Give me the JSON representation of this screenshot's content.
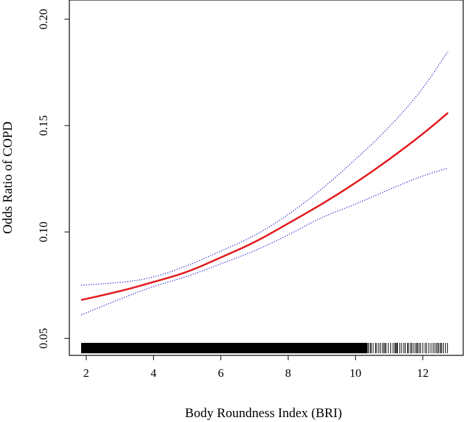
{
  "chart_data": {
    "type": "line",
    "xlabel": "Body Roundness Index (BRI)",
    "ylabel": "Odds Ratio of COPD",
    "xlim": [
      1.5,
      13.2
    ],
    "ylim": [
      0.042,
      0.209
    ],
    "x_ticks": [
      2,
      4,
      6,
      8,
      10,
      12
    ],
    "x_tick_labels": [
      "2",
      "4",
      "6",
      "8",
      "10",
      "12"
    ],
    "y_ticks": [
      0.05,
      0.1,
      0.15,
      0.2
    ],
    "y_tick_labels": [
      "0.05",
      "0.10",
      "0.15",
      "0.20"
    ],
    "grid": false,
    "rug": {
      "x_start": 1.85,
      "x_end": 12.75,
      "density": "dense"
    },
    "series": [
      {
        "role": "estimate",
        "color": "#e31a1c",
        "style": "solid",
        "x": [
          1.85,
          3,
          4,
          5,
          6,
          7,
          8,
          9,
          10,
          11,
          12,
          12.75
        ],
        "y": [
          0.068,
          0.072,
          0.0765,
          0.081,
          0.088,
          0.095,
          0.104,
          0.113,
          0.123,
          0.134,
          0.146,
          0.156
        ]
      },
      {
        "role": "upper",
        "color": "#2222cc",
        "style": "dotted",
        "x": [
          1.85,
          3,
          4,
          5,
          6,
          7,
          8,
          9,
          10,
          11,
          12,
          12.75
        ],
        "y": [
          0.075,
          0.076,
          0.0785,
          0.084,
          0.091,
          0.098,
          0.108,
          0.12,
          0.134,
          0.149,
          0.167,
          0.185
        ]
      },
      {
        "role": "lower",
        "color": "#2222cc",
        "style": "dotted",
        "x": [
          1.85,
          3,
          4,
          5,
          6,
          7,
          8,
          9,
          10,
          11,
          12,
          12.75
        ],
        "y": [
          0.061,
          0.0685,
          0.0745,
          0.079,
          0.085,
          0.091,
          0.0985,
          0.107,
          0.113,
          0.12,
          0.1265,
          0.13
        ]
      }
    ]
  }
}
